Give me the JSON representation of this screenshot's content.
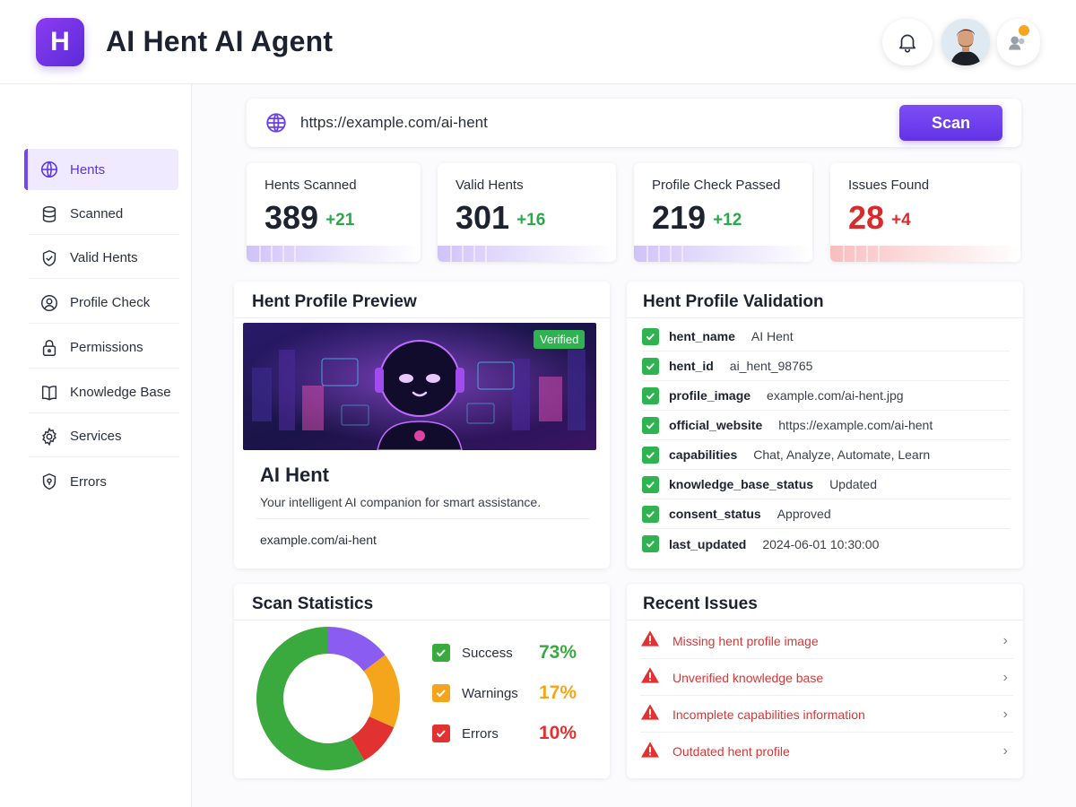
{
  "app": {
    "logo_letter": "H",
    "title": "AI Hent AI Agent"
  },
  "header_icons": [
    "bell-icon",
    "avatar",
    "assistant-icon"
  ],
  "sidebar": {
    "items": [
      {
        "label": "Hents",
        "icon": "globe-icon",
        "active": true
      },
      {
        "label": "Scanned",
        "icon": "database-icon"
      },
      {
        "label": "Valid Hents",
        "icon": "shield-check-icon"
      },
      {
        "label": "Profile Check",
        "icon": "user-circle-icon"
      },
      {
        "label": "Permissions",
        "icon": "lock-icon"
      },
      {
        "label": "Knowledge Base",
        "icon": "book-icon"
      },
      {
        "label": "Services",
        "icon": "gear-icon"
      },
      {
        "label": "Errors",
        "icon": "shield-alert-icon"
      }
    ]
  },
  "search": {
    "value": "https://example.com/ai-hent",
    "button_label": "Scan"
  },
  "stats": [
    {
      "label": "Hents Scanned",
      "value": "389",
      "delta": "+21"
    },
    {
      "label": "Valid Hents",
      "value": "301",
      "delta": "+16"
    },
    {
      "label": "Profile Check Passed",
      "value": "219",
      "delta": "+12"
    },
    {
      "label": "Issues Found",
      "value": "28",
      "delta": "+4"
    }
  ],
  "preview": {
    "title": "Hent Profile Preview",
    "badge": "Verified",
    "name": "AI Hent",
    "description": "Your intelligent AI companion for smart assistance.",
    "url": "example.com/ai-hent"
  },
  "validation": {
    "title": "Hent Profile Validation",
    "rows": [
      {
        "key": "hent_name",
        "value": "AI Hent"
      },
      {
        "key": "hent_id",
        "value": "ai_hent_98765"
      },
      {
        "key": "profile_image",
        "value": "example.com/ai-hent.jpg"
      },
      {
        "key": "official_website",
        "value": "https://example.com/ai-hent"
      },
      {
        "key": "capabilities",
        "value": "Chat, Analyze, Automate, Learn"
      },
      {
        "key": "knowledge_base_status",
        "value": "Updated"
      },
      {
        "key": "consent_status",
        "value": "Approved"
      },
      {
        "key": "last_updated",
        "value": "2024-06-01 10:30:00"
      }
    ]
  },
  "scan_statistics": {
    "title": "Scan Statistics",
    "legend": [
      {
        "label": "Success",
        "pct": "73%"
      },
      {
        "label": "Warnings",
        "pct": "17%"
      },
      {
        "label": "Errors",
        "pct": "10%"
      }
    ]
  },
  "chart_data": {
    "type": "pie",
    "categories": [
      "Success",
      "Warnings",
      "Errors"
    ],
    "values": [
      73,
      17,
      10
    ],
    "colors": [
      "#3aaa3f",
      "#f5a51c",
      "#e23131"
    ],
    "accent_segment_color": "#8a5cf0"
  },
  "recent_issues": {
    "title": "Recent Issues",
    "items": [
      "Missing hent profile image",
      "Unverified knowledge base",
      "Incomplete capabilities information",
      "Outdated hent profile"
    ]
  },
  "colors": {
    "accent": "#6a3ff0",
    "success": "#2eb350",
    "danger": "#d93636",
    "warning": "#f5a51c"
  }
}
